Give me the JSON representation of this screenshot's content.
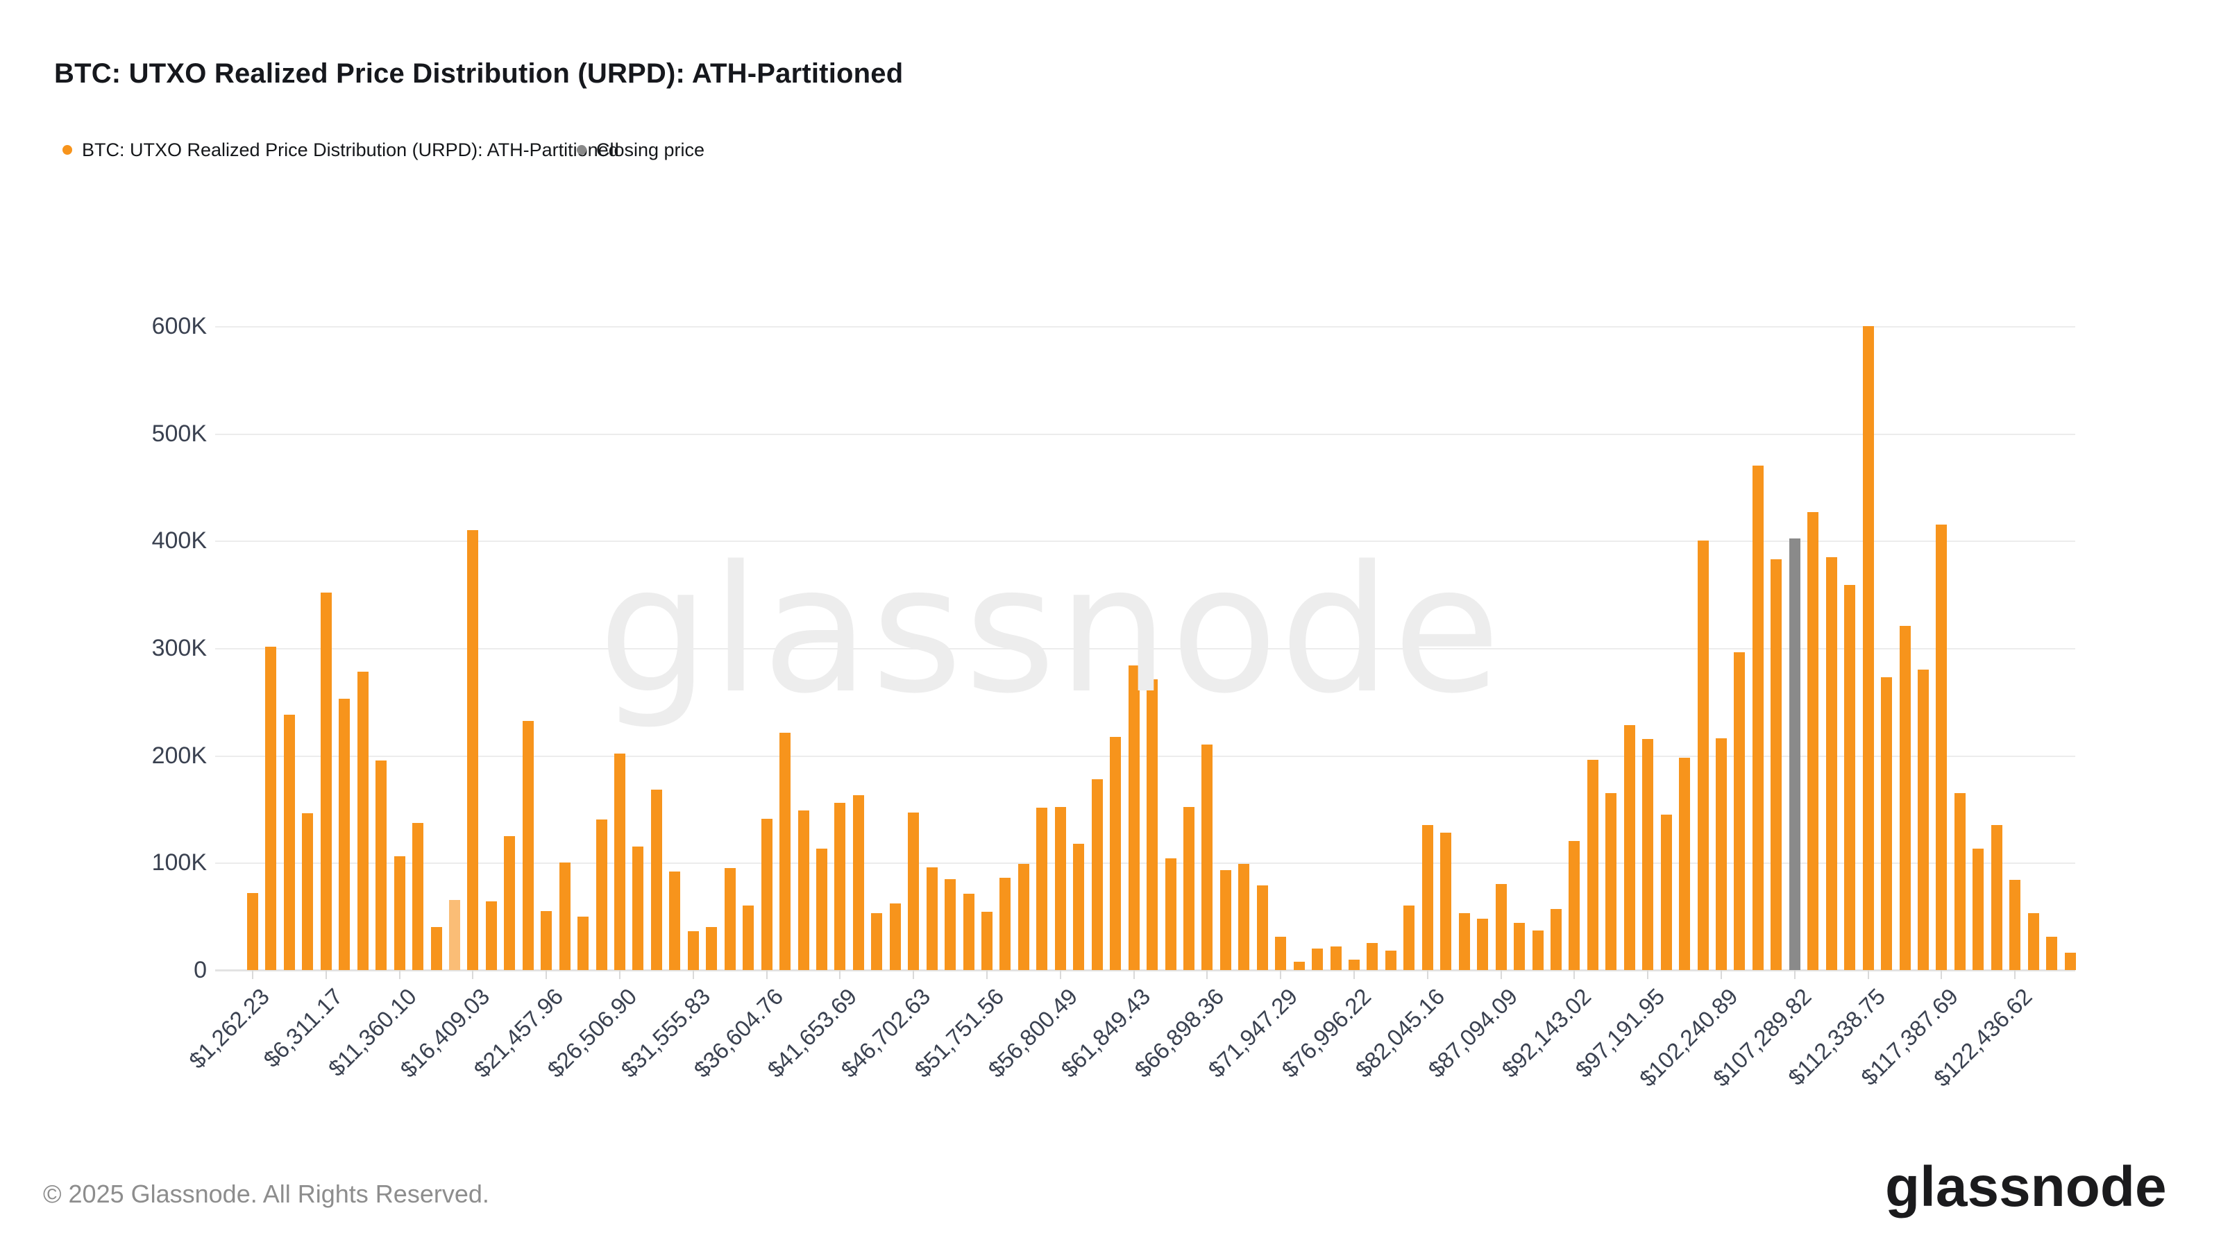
{
  "header": {
    "title": "BTC: UTXO Realized Price Distribution (URPD): ATH-Partitioned",
    "legend": [
      {
        "label": "BTC: UTXO Realized Price Distribution (URPD): ATH-Partitioned",
        "color": "#f7941c",
        "icon": "orange-dot"
      },
      {
        "label": "Closing price",
        "color": "#8a8a8a",
        "icon": "gray-dot"
      }
    ]
  },
  "watermark": "glassnode",
  "footer": {
    "copyright": "© 2025 Glassnode. All Rights Reserved.",
    "brand": "glassnode"
  },
  "colors": {
    "bar_orange": "#f7941c",
    "bar_light_orange": "#fabd76",
    "bar_closing_gray": "#8a8a8a",
    "gridline": "#ececec",
    "axis_text": "#3a4150",
    "watermark": "#ededed",
    "footer_text": "#8d8d8d"
  },
  "chart_data": {
    "type": "bar",
    "title": "BTC: UTXO Realized Price Distribution (URPD): ATH-Partitioned",
    "xlabel": "",
    "ylabel": "",
    "unit": "BTC",
    "ylim": [
      0,
      600000
    ],
    "grid": "horizontal",
    "legend_position": "top-left",
    "y_tick_labels": [
      "0",
      "100K",
      "200K",
      "300K",
      "400K",
      "500K",
      "600K"
    ],
    "x_tick_interval_bars": 4,
    "bin_width_usd": 1262.23,
    "x_tick_labels": [
      "$1,262.23",
      "$6,311.17",
      "$11,360.10",
      "$16,409.03",
      "$21,457.96",
      "$26,506.90",
      "$31,555.83",
      "$36,604.76",
      "$41,653.69",
      "$46,702.63",
      "$51,751.56",
      "$56,800.49",
      "$61,849.43",
      "$66,898.36",
      "$71,947.29",
      "$76,996.22",
      "$82,045.16",
      "$87,094.09",
      "$92,143.02",
      "$97,191.95",
      "$102,240.89",
      "$107,289.82",
      "$112,338.75",
      "$117,387.69",
      "$122,436.62"
    ],
    "series": [
      {
        "name": "BTC: UTXO Realized Price Distribution (URPD): ATH-Partitioned",
        "values": [
          72000,
          301000,
          238000,
          146000,
          352000,
          253000,
          278000,
          195000,
          106000,
          137000,
          40000,
          65000,
          410000,
          64000,
          125000,
          232000,
          55000,
          100000,
          50000,
          140000,
          202000,
          115000,
          168000,
          92000,
          36000,
          40000,
          95000,
          60000,
          141000,
          221000,
          149000,
          113000,
          156000,
          163000,
          53000,
          62000,
          147000,
          96000,
          85000,
          71000,
          54000,
          86000,
          99000,
          151000,
          152000,
          118000,
          178000,
          217000,
          284000,
          271000,
          104000,
          152000,
          210000,
          93000,
          99000,
          79000,
          31000,
          8000,
          20000,
          22000,
          10000,
          25000,
          18000,
          60000,
          135000,
          128000,
          53000,
          48000,
          80000,
          44000,
          37000,
          57000,
          120000,
          196000,
          165000,
          228000,
          215000,
          145000,
          198000,
          400000,
          216000,
          296000,
          470000,
          383000,
          402000,
          427000,
          385000,
          359000,
          600000,
          273000,
          321000,
          280000,
          415000,
          165000,
          113000,
          135000,
          84000,
          53000,
          31000,
          16000
        ]
      }
    ],
    "special_bars": {
      "light_orange_index": 11,
      "closing_price_index": 84
    }
  }
}
